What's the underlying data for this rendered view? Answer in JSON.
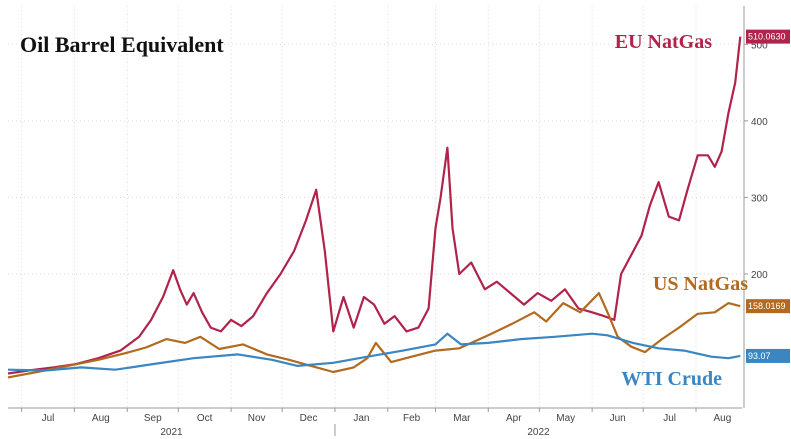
{
  "chart_data": {
    "type": "line",
    "title": "Oil Barrel Equivalent",
    "xlabel": "",
    "ylabel": "",
    "x_month_labels": [
      "Jul",
      "Aug",
      "Sep",
      "Oct",
      "Nov",
      "Dec",
      "Jan",
      "Feb",
      "Mar",
      "Apr",
      "May",
      "Jun",
      "Jul",
      "Aug"
    ],
    "x_year_labels": [
      "2021",
      "2022"
    ],
    "y_tick_labels": [
      "200",
      "300",
      "400",
      "500"
    ],
    "y_ticks": [
      200,
      300,
      400,
      500
    ],
    "ylim": [
      25,
      550
    ],
    "x_range": [
      "2021-06-23",
      "2022-08-28"
    ],
    "grid": true,
    "legend": "none",
    "series": [
      {
        "name": "EU NatGas",
        "color": "#b0234a",
        "last_value_label": "510.0630",
        "points": [
          [
            "2021-06-23",
            70
          ],
          [
            "2021-07-05",
            74
          ],
          [
            "2021-07-20",
            78
          ],
          [
            "2021-08-01",
            82
          ],
          [
            "2021-08-15",
            90
          ],
          [
            "2021-08-28",
            100
          ],
          [
            "2021-09-08",
            118
          ],
          [
            "2021-09-15",
            140
          ],
          [
            "2021-09-22",
            170
          ],
          [
            "2021-09-28",
            205
          ],
          [
            "2021-10-02",
            180
          ],
          [
            "2021-10-06",
            160
          ],
          [
            "2021-10-10",
            175
          ],
          [
            "2021-10-15",
            150
          ],
          [
            "2021-10-20",
            130
          ],
          [
            "2021-10-26",
            125
          ],
          [
            "2021-11-01",
            140
          ],
          [
            "2021-11-07",
            132
          ],
          [
            "2021-11-14",
            145
          ],
          [
            "2021-11-22",
            175
          ],
          [
            "2021-11-30",
            200
          ],
          [
            "2021-12-08",
            230
          ],
          [
            "2021-12-15",
            270
          ],
          [
            "2021-12-21",
            310
          ],
          [
            "2021-12-26",
            230
          ],
          [
            "2021-12-31",
            125
          ],
          [
            "2022-01-06",
            170
          ],
          [
            "2022-01-12",
            130
          ],
          [
            "2022-01-18",
            170
          ],
          [
            "2022-01-24",
            160
          ],
          [
            "2022-01-30",
            135
          ],
          [
            "2022-02-05",
            145
          ],
          [
            "2022-02-12",
            125
          ],
          [
            "2022-02-19",
            130
          ],
          [
            "2022-02-25",
            155
          ],
          [
            "2022-03-01",
            260
          ],
          [
            "2022-03-04",
            300
          ],
          [
            "2022-03-08",
            365
          ],
          [
            "2022-03-11",
            260
          ],
          [
            "2022-03-15",
            200
          ],
          [
            "2022-03-22",
            215
          ],
          [
            "2022-03-30",
            180
          ],
          [
            "2022-04-06",
            190
          ],
          [
            "2022-04-14",
            175
          ],
          [
            "2022-04-22",
            160
          ],
          [
            "2022-04-30",
            175
          ],
          [
            "2022-05-08",
            165
          ],
          [
            "2022-05-16",
            180
          ],
          [
            "2022-05-24",
            155
          ],
          [
            "2022-06-01",
            150
          ],
          [
            "2022-06-08",
            145
          ],
          [
            "2022-06-14",
            140
          ],
          [
            "2022-06-18",
            200
          ],
          [
            "2022-06-24",
            225
          ],
          [
            "2022-06-30",
            250
          ],
          [
            "2022-07-05",
            290
          ],
          [
            "2022-07-10",
            320
          ],
          [
            "2022-07-16",
            275
          ],
          [
            "2022-07-22",
            270
          ],
          [
            "2022-07-27",
            310
          ],
          [
            "2022-08-02",
            355
          ],
          [
            "2022-08-08",
            355
          ],
          [
            "2022-08-12",
            340
          ],
          [
            "2022-08-16",
            360
          ],
          [
            "2022-08-20",
            410
          ],
          [
            "2022-08-24",
            450
          ],
          [
            "2022-08-27",
            510
          ]
        ]
      },
      {
        "name": "US NatGas",
        "color": "#b3691e",
        "last_value_label": "158.0169",
        "points": [
          [
            "2021-06-23",
            65
          ],
          [
            "2021-07-10",
            72
          ],
          [
            "2021-07-28",
            80
          ],
          [
            "2021-08-15",
            88
          ],
          [
            "2021-08-30",
            96
          ],
          [
            "2021-09-12",
            104
          ],
          [
            "2021-09-24",
            115
          ],
          [
            "2021-10-05",
            110
          ],
          [
            "2021-10-14",
            118
          ],
          [
            "2021-10-25",
            102
          ],
          [
            "2021-11-08",
            108
          ],
          [
            "2021-11-22",
            95
          ],
          [
            "2021-12-05",
            88
          ],
          [
            "2021-12-18",
            80
          ],
          [
            "2021-12-31",
            72
          ],
          [
            "2022-01-12",
            78
          ],
          [
            "2022-01-20",
            90
          ],
          [
            "2022-01-25",
            110
          ],
          [
            "2022-02-03",
            85
          ],
          [
            "2022-02-15",
            92
          ],
          [
            "2022-03-01",
            100
          ],
          [
            "2022-03-15",
            103
          ],
          [
            "2022-04-01",
            120
          ],
          [
            "2022-04-15",
            135
          ],
          [
            "2022-04-28",
            150
          ],
          [
            "2022-05-05",
            138
          ],
          [
            "2022-05-15",
            162
          ],
          [
            "2022-05-25",
            150
          ],
          [
            "2022-06-05",
            175
          ],
          [
            "2022-06-10",
            150
          ],
          [
            "2022-06-16",
            118
          ],
          [
            "2022-06-24",
            105
          ],
          [
            "2022-07-02",
            98
          ],
          [
            "2022-07-12",
            115
          ],
          [
            "2022-07-22",
            130
          ],
          [
            "2022-08-02",
            148
          ],
          [
            "2022-08-12",
            150
          ],
          [
            "2022-08-20",
            162
          ],
          [
            "2022-08-27",
            158
          ]
        ]
      },
      {
        "name": "WTI Crude",
        "color": "#3a86c2",
        "last_value_label": "93.07",
        "points": [
          [
            "2021-06-23",
            75
          ],
          [
            "2021-07-15",
            74
          ],
          [
            "2021-08-05",
            78
          ],
          [
            "2021-08-25",
            75
          ],
          [
            "2021-09-15",
            82
          ],
          [
            "2021-10-10",
            90
          ],
          [
            "2021-11-05",
            95
          ],
          [
            "2021-11-25",
            88
          ],
          [
            "2021-12-10",
            80
          ],
          [
            "2021-12-31",
            84
          ],
          [
            "2022-01-20",
            92
          ],
          [
            "2022-02-10",
            100
          ],
          [
            "2022-03-01",
            108
          ],
          [
            "2022-03-08",
            122
          ],
          [
            "2022-03-16",
            108
          ],
          [
            "2022-04-01",
            110
          ],
          [
            "2022-04-20",
            115
          ],
          [
            "2022-05-10",
            118
          ],
          [
            "2022-06-01",
            122
          ],
          [
            "2022-06-10",
            120
          ],
          [
            "2022-06-25",
            110
          ],
          [
            "2022-07-10",
            103
          ],
          [
            "2022-07-25",
            100
          ],
          [
            "2022-08-10",
            92
          ],
          [
            "2022-08-20",
            90
          ],
          [
            "2022-08-27",
            93
          ]
        ]
      }
    ]
  }
}
